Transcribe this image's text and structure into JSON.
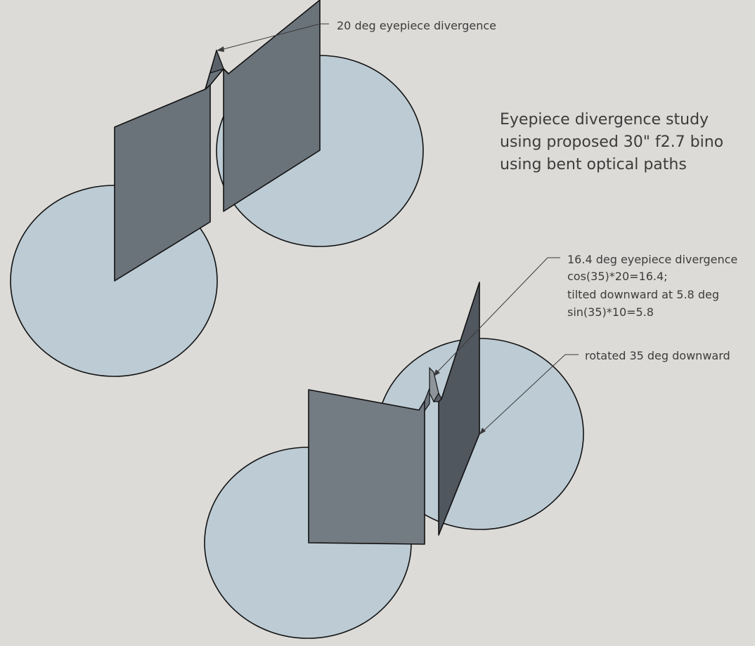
{
  "title_lines": [
    "Eyepiece divergence study",
    "using proposed 30\" f2.7 bino",
    "using bent optical paths"
  ],
  "callouts": {
    "top": "20 deg eyepiece divergence",
    "bottom_lines": [
      "16.4 deg eyepiece divergence",
      "cos(35)*20=16.4;",
      "tilted downward at 5.8 deg",
      "sin(35)*10=5.8"
    ],
    "rotated": "rotated 35 deg downward"
  },
  "colors": {
    "background": "#dcdbd8",
    "disc": "#bccbd4",
    "panel": "#6a727a",
    "outline": "#111111"
  }
}
